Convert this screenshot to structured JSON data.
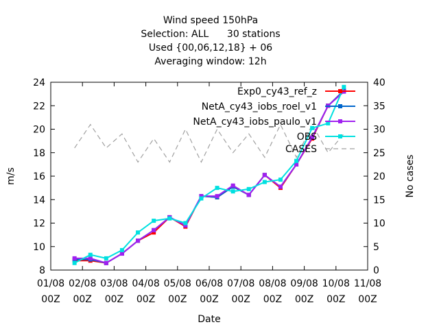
{
  "chart_data": {
    "type": "line",
    "title_lines": [
      "Wind speed 150hPa",
      "Selection: ALL      30 stations",
      "Used {00,06,12,18} + 06",
      "Averaging window: 12h"
    ],
    "xlabel": "Date",
    "ylabel": "m/s",
    "y2label": "No cases",
    "xlim": [
      0,
      10
    ],
    "ylim": [
      8,
      24
    ],
    "y2lim": [
      0,
      40
    ],
    "x_ticks": [
      {
        "top": "01/08",
        "bottom": "00Z"
      },
      {
        "top": "02/08",
        "bottom": "00Z"
      },
      {
        "top": "03/08",
        "bottom": "00Z"
      },
      {
        "top": "04/08",
        "bottom": "00Z"
      },
      {
        "top": "05/08",
        "bottom": "00Z"
      },
      {
        "top": "06/08",
        "bottom": "00Z"
      },
      {
        "top": "07/08",
        "bottom": "00Z"
      },
      {
        "top": "08/08",
        "bottom": "00Z"
      },
      {
        "top": "09/08",
        "bottom": "00Z"
      },
      {
        "top": "10/08",
        "bottom": "00Z"
      },
      {
        "top": "11/08",
        "bottom": "00Z"
      }
    ],
    "y_ticks": [
      8,
      10,
      12,
      14,
      16,
      18,
      20,
      22,
      24
    ],
    "y2_ticks": [
      0,
      5,
      10,
      15,
      20,
      25,
      30,
      35,
      40
    ],
    "grid": false,
    "legend_position": "top-right",
    "x": [
      0.75,
      1.25,
      1.75,
      2.25,
      2.75,
      3.25,
      3.75,
      4.25,
      4.75,
      5.25,
      5.75,
      6.25,
      6.75,
      7.25,
      7.75,
      8.25,
      8.75,
      9.25
    ],
    "series": [
      {
        "name": "Exp0_cy43_ref_z",
        "color": "#ff0000",
        "axis": "y",
        "values": [
          8.8,
          8.8,
          8.6,
          9.4,
          10.5,
          11.2,
          12.5,
          11.7,
          14.3,
          14.2,
          15.1,
          14.4,
          16.1,
          15.0,
          17.0,
          19.2,
          22.0,
          23.3
        ]
      },
      {
        "name": "NetA_cy43_iobs_roel_v1",
        "color": "#0066cc",
        "axis": "y",
        "values": [
          8.9,
          8.9,
          8.6,
          9.4,
          10.5,
          11.4,
          12.5,
          11.8,
          14.3,
          14.2,
          15.1,
          14.4,
          16.1,
          15.1,
          17.0,
          19.3,
          22.0,
          23.3
        ]
      },
      {
        "name": "NetA_cy43_iobs_paulo_v1",
        "color": "#a020f0",
        "axis": "y",
        "values": [
          9.0,
          9.0,
          8.6,
          9.4,
          10.5,
          11.4,
          12.5,
          11.8,
          14.3,
          14.3,
          15.2,
          14.4,
          16.1,
          15.1,
          17.0,
          19.3,
          22.0,
          23.2
        ]
      },
      {
        "name": "OBS",
        "color": "#00e0e0",
        "axis": "y",
        "values": [
          8.6,
          9.3,
          9.0,
          9.7,
          11.2,
          12.2,
          12.4,
          12.0,
          14.1,
          15.0,
          14.7,
          14.9,
          15.5,
          15.7,
          17.3,
          20.1,
          20.5,
          23.6
        ]
      },
      {
        "name": "CASES",
        "color": "#a0a0a0",
        "axis": "y2",
        "dashed": true,
        "values": [
          26,
          31,
          26,
          29,
          23,
          28,
          23,
          30,
          23,
          30,
          25,
          29,
          24,
          31,
          24,
          31,
          25,
          29
        ]
      }
    ]
  }
}
